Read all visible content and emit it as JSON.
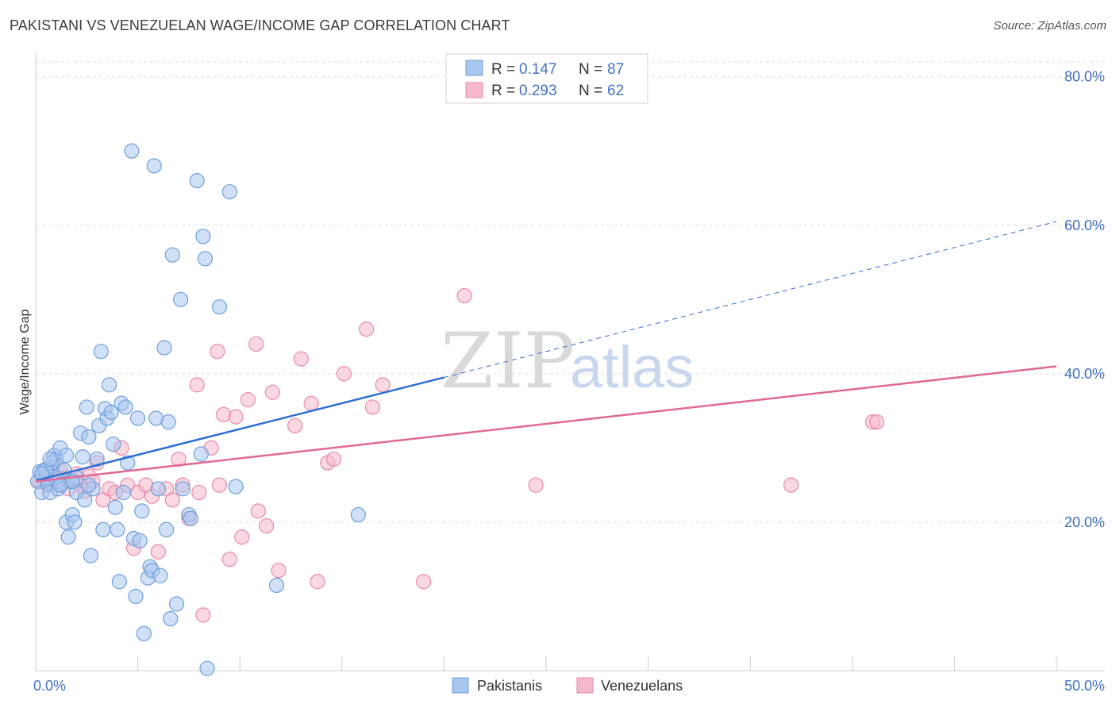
{
  "title": "PAKISTANI VS VENEZUELAN WAGE/INCOME GAP CORRELATION CHART",
  "source": "Source: ZipAtlas.com",
  "watermark": {
    "zip": "ZIP",
    "atlas": "atlas"
  },
  "colors": {
    "blue_fill": "#a9c6f0",
    "blue_stroke": "#6f9fdc",
    "blue_line": "#2f6fcf",
    "pink_fill": "#f6b8cb",
    "pink_stroke": "#e98aa9",
    "pink_line": "#e06a95",
    "grid": "#dddddd",
    "tick_text": "#4472c4"
  },
  "legend": {
    "rows": [
      {
        "r_label": "R = ",
        "r_value": "0.147",
        "n_label": "N = ",
        "n_value": "87",
        "color": "blue"
      },
      {
        "r_label": "R = ",
        "r_value": "0.293",
        "n_label": "N = ",
        "n_value": "62",
        "color": "pink"
      }
    ]
  },
  "bottom_legend": [
    {
      "label": "Pakistanis",
      "color": "blue"
    },
    {
      "label": "Venezuelans",
      "color": "pink"
    }
  ],
  "chart_data": {
    "type": "scatter",
    "title": "PAKISTANI VS VENEZUELAN WAGE/INCOME GAP CORRELATION CHART",
    "xlabel": "",
    "ylabel": "Wage/Income Gap",
    "xlim": [
      0,
      50
    ],
    "ylim": [
      0,
      82
    ],
    "x_tick_labels": {
      "left": "0.0%",
      "right": "50.0%"
    },
    "y_ticks": [
      {
        "value": 20,
        "label": "20.0%"
      },
      {
        "value": 40,
        "label": "40.0%"
      },
      {
        "value": 60,
        "label": "60.0%"
      },
      {
        "value": 80,
        "label": "80.0%"
      }
    ],
    "series": [
      {
        "name": "Pakistanis",
        "color": "blue",
        "R": 0.147,
        "N": 87,
        "trend": {
          "x_start": 0,
          "y_start": 25.6,
          "x_solid_end": 20,
          "y_solid_end": 39.5,
          "x_dash_end": 50,
          "y_dash_end": 60.5
        },
        "points": [
          [
            0.1,
            25.5
          ],
          [
            0.2,
            26.8
          ],
          [
            0.3,
            24.0
          ],
          [
            0.4,
            27.0
          ],
          [
            0.5,
            26.0
          ],
          [
            0.6,
            25.2
          ],
          [
            0.7,
            24.0
          ],
          [
            0.8,
            27.5
          ],
          [
            0.9,
            29.0
          ],
          [
            1.0,
            28.5
          ],
          [
            1.1,
            24.5
          ],
          [
            1.2,
            30.0
          ],
          [
            1.3,
            25.2
          ],
          [
            1.4,
            27.0
          ],
          [
            1.5,
            20.0
          ],
          [
            1.6,
            18.0
          ],
          [
            1.7,
            25.5
          ],
          [
            1.8,
            21.0
          ],
          [
            1.9,
            20.0
          ],
          [
            2.0,
            24.0
          ],
          [
            2.2,
            32.0
          ],
          [
            2.3,
            28.8
          ],
          [
            2.4,
            23.0
          ],
          [
            2.5,
            35.5
          ],
          [
            2.6,
            31.5
          ],
          [
            2.7,
            15.5
          ],
          [
            2.8,
            24.5
          ],
          [
            3.0,
            28.5
          ],
          [
            3.1,
            33.0
          ],
          [
            3.2,
            43.0
          ],
          [
            3.3,
            19.0
          ],
          [
            3.4,
            35.3
          ],
          [
            3.5,
            34.0
          ],
          [
            3.6,
            38.5
          ],
          [
            3.7,
            34.8
          ],
          [
            3.8,
            30.5
          ],
          [
            3.9,
            22.0
          ],
          [
            4.0,
            19.0
          ],
          [
            4.1,
            12.0
          ],
          [
            4.2,
            36.0
          ],
          [
            4.3,
            24.0
          ],
          [
            4.4,
            35.5
          ],
          [
            4.5,
            28.0
          ],
          [
            4.7,
            70.0
          ],
          [
            4.8,
            17.8
          ],
          [
            4.9,
            10.0
          ],
          [
            5.0,
            34.0
          ],
          [
            5.1,
            17.5
          ],
          [
            5.2,
            21.5
          ],
          [
            5.3,
            5.0
          ],
          [
            5.5,
            12.5
          ],
          [
            5.6,
            14.0
          ],
          [
            5.7,
            13.5
          ],
          [
            5.8,
            68.0
          ],
          [
            5.9,
            34.0
          ],
          [
            6.0,
            24.5
          ],
          [
            6.1,
            12.8
          ],
          [
            6.3,
            43.5
          ],
          [
            6.4,
            19.0
          ],
          [
            6.5,
            33.5
          ],
          [
            6.6,
            7.0
          ],
          [
            6.7,
            56.0
          ],
          [
            6.9,
            9.0
          ],
          [
            7.1,
            50.0
          ],
          [
            7.2,
            24.5
          ],
          [
            7.5,
            21.0
          ],
          [
            7.6,
            20.5
          ],
          [
            8.1,
            29.2
          ],
          [
            7.9,
            66.0
          ],
          [
            8.2,
            58.5
          ],
          [
            8.3,
            55.5
          ],
          [
            8.4,
            0.3
          ],
          [
            9.0,
            49.0
          ],
          [
            9.5,
            64.5
          ],
          [
            9.8,
            24.8
          ],
          [
            11.8,
            11.5
          ],
          [
            15.8,
            21.0
          ],
          [
            1.0,
            26.0
          ],
          [
            0.8,
            28.0
          ],
          [
            1.5,
            29.0
          ],
          [
            2.0,
            26.0
          ],
          [
            1.2,
            25.0
          ],
          [
            0.5,
            27.0
          ],
          [
            0.3,
            26.5
          ],
          [
            1.8,
            25.5
          ],
          [
            2.6,
            25.0
          ],
          [
            0.7,
            28.5
          ]
        ]
      },
      {
        "name": "Venezuelans",
        "color": "pink",
        "R": 0.293,
        "N": 62,
        "trend": {
          "x_start": 0,
          "y_start": 25.5,
          "x_end": 50,
          "y_end": 41.0
        },
        "points": [
          [
            0.2,
            25.5
          ],
          [
            0.4,
            26.0
          ],
          [
            0.6,
            25.0
          ],
          [
            0.8,
            26.5
          ],
          [
            1.0,
            25.5
          ],
          [
            1.2,
            27.0
          ],
          [
            1.4,
            26.0
          ],
          [
            1.6,
            24.5
          ],
          [
            1.8,
            25.8
          ],
          [
            2.0,
            26.5
          ],
          [
            2.2,
            25.0
          ],
          [
            2.4,
            24.2
          ],
          [
            2.6,
            26.2
          ],
          [
            2.8,
            25.5
          ],
          [
            3.0,
            28.0
          ],
          [
            3.3,
            23.0
          ],
          [
            3.6,
            24.5
          ],
          [
            3.9,
            24.0
          ],
          [
            4.2,
            30.0
          ],
          [
            4.5,
            25.0
          ],
          [
            4.8,
            16.5
          ],
          [
            5.0,
            24.0
          ],
          [
            5.4,
            25.0
          ],
          [
            5.7,
            23.5
          ],
          [
            6.0,
            16.0
          ],
          [
            6.4,
            24.5
          ],
          [
            6.7,
            23.0
          ],
          [
            7.0,
            28.5
          ],
          [
            7.2,
            25.0
          ],
          [
            7.5,
            20.5
          ],
          [
            7.9,
            38.5
          ],
          [
            8.2,
            7.5
          ],
          [
            8.6,
            30.0
          ],
          [
            8.9,
            43.0
          ],
          [
            9.2,
            34.5
          ],
          [
            9.5,
            15.0
          ],
          [
            9.8,
            34.2
          ],
          [
            10.1,
            18.0
          ],
          [
            10.4,
            36.5
          ],
          [
            10.9,
            21.5
          ],
          [
            11.3,
            19.5
          ],
          [
            11.6,
            37.5
          ],
          [
            11.9,
            13.5
          ],
          [
            12.7,
            33.0
          ],
          [
            13.0,
            42.0
          ],
          [
            13.5,
            36.0
          ],
          [
            13.8,
            12.0
          ],
          [
            14.3,
            28.0
          ],
          [
            14.6,
            28.5
          ],
          [
            15.1,
            40.0
          ],
          [
            16.2,
            46.0
          ],
          [
            16.5,
            35.5
          ],
          [
            17.0,
            38.5
          ],
          [
            19.0,
            12.0
          ],
          [
            21.0,
            50.5
          ],
          [
            24.5,
            25.0
          ],
          [
            37.0,
            25.0
          ],
          [
            41.0,
            33.5
          ],
          [
            41.2,
            33.5
          ],
          [
            8.0,
            24.0
          ],
          [
            9.0,
            25.0
          ],
          [
            10.8,
            44.0
          ]
        ]
      }
    ]
  }
}
